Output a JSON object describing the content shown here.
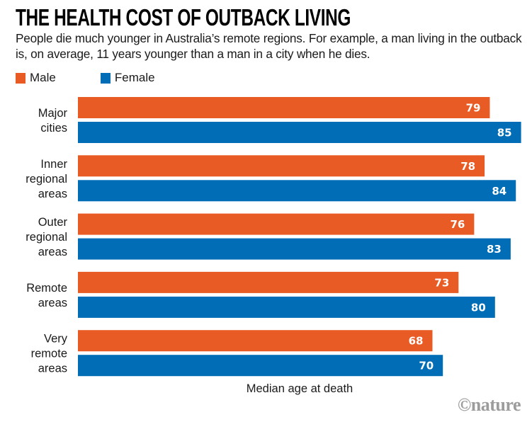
{
  "header": {
    "title": "THE HEALTH COST OF OUTBACK LIVING",
    "subtitle": "People die much younger in Australia’s remote regions. For example, a man living in the outback is, on average, 11 years younger than a man in a city when he dies."
  },
  "legend": [
    {
      "label": "Male",
      "color": "#E85B25"
    },
    {
      "label": "Female",
      "color": "#006DB6"
    }
  ],
  "footer": {
    "axis_label": "Median age at death",
    "logo": "©nature"
  },
  "chart_data": {
    "type": "bar",
    "orientation": "horizontal",
    "title": "THE HEALTH COST OF OUTBACK LIVING",
    "subtitle": "People die much younger in Australia’s remote regions. For example, a man living in the outback is, on average, 11 years younger than a man in a city when he dies.",
    "xlabel": "Median age at death",
    "ylabel": "",
    "xlim": [
      0,
      85
    ],
    "grid": false,
    "legend_position": "top-left",
    "categories": [
      [
        "Major",
        "cities"
      ],
      [
        "Inner",
        "regional",
        "areas"
      ],
      [
        "Outer",
        "regional",
        "areas"
      ],
      [
        "Remote",
        "areas"
      ],
      [
        "Very",
        "remote",
        "areas"
      ]
    ],
    "series": [
      {
        "name": "Male",
        "color": "#E85B25",
        "values": [
          79,
          78,
          76,
          73,
          68
        ]
      },
      {
        "name": "Female",
        "color": "#006DB6",
        "values": [
          85,
          84,
          83,
          80,
          70
        ]
      }
    ]
  }
}
